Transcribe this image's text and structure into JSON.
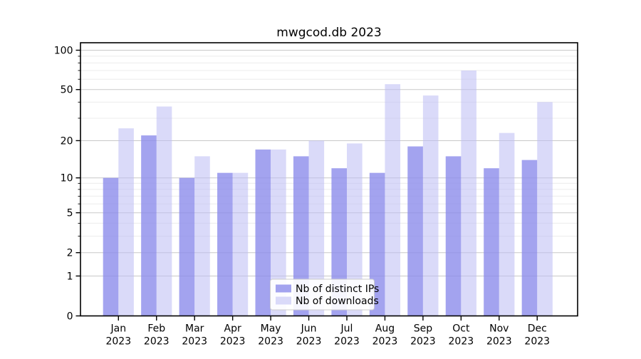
{
  "title": "mwgcod.db 2023",
  "chart_data": {
    "type": "bar",
    "title": "mwgcod.db 2023",
    "categories": [
      "Jan 2023",
      "Feb 2023",
      "Mar 2023",
      "Apr 2023",
      "May 2023",
      "Jun 2023",
      "Jul 2023",
      "Aug 2023",
      "Sep 2023",
      "Oct 2023",
      "Nov 2023",
      "Dec 2023"
    ],
    "x_tick_line1": [
      "Jan",
      "Feb",
      "Mar",
      "Apr",
      "May",
      "Jun",
      "Jul",
      "Aug",
      "Sep",
      "Oct",
      "Nov",
      "Dec"
    ],
    "x_tick_line2": [
      "2023",
      "2023",
      "2023",
      "2023",
      "2023",
      "2023",
      "2023",
      "2023",
      "2023",
      "2023",
      "2023",
      "2023"
    ],
    "series": [
      {
        "name": "Nb of distinct IPs",
        "values": [
          10,
          22,
          10,
          11,
          17,
          15,
          12,
          11,
          18,
          15,
          12,
          14
        ],
        "color": "#a3a3ef",
        "color_base": "#8c8ceb",
        "fill_alpha": 0.8
      },
      {
        "name": "Nb of downloads",
        "values": [
          25,
          37,
          15,
          11,
          17,
          20,
          19,
          55,
          45,
          70,
          23,
          40
        ],
        "color": "#dadaf9",
        "color_base": "#bcbcf4",
        "fill_alpha": 0.55
      }
    ],
    "xlabel": "",
    "ylabel": "",
    "y_scale": "log1p",
    "y_ticks": [
      0,
      1,
      2,
      5,
      10,
      20,
      50,
      100
    ],
    "y_minor_ticks": [
      3,
      4,
      6,
      7,
      8,
      9,
      30,
      40,
      60,
      70,
      80,
      90
    ],
    "ylim": [
      0,
      114
    ],
    "grid": true,
    "legend_position": "lower center",
    "colors": {
      "major_grid": "#c9c9c9",
      "minor_grid": "#ececec",
      "spine": "#000000",
      "legend_border": "#cccccc",
      "legend_bg": "#ffffff"
    }
  }
}
